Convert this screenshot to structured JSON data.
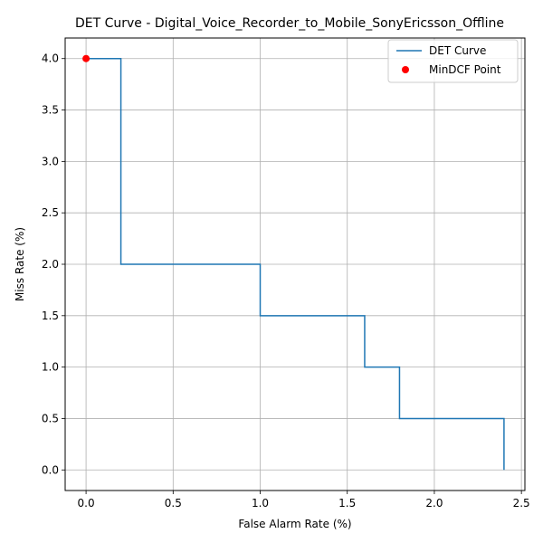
{
  "chart_data": {
    "type": "line",
    "title": "DET Curve - Digital_Voice_Recorder_to_Mobile_SonyEricsson_Offline",
    "xlabel": "False Alarm Rate (%)",
    "ylabel": "Miss Rate (%)",
    "xlim": [
      -0.12,
      2.52
    ],
    "ylim": [
      -0.2,
      4.2
    ],
    "grid": true,
    "legend_position": "top-right",
    "xticks": [
      0.0,
      0.5,
      1.0,
      1.5,
      2.0,
      2.5
    ],
    "yticks": [
      0.0,
      0.5,
      1.0,
      1.5,
      2.0,
      2.5,
      3.0,
      3.5,
      4.0
    ],
    "xtick_labels": [
      "0.0",
      "0.5",
      "1.0",
      "1.5",
      "2.0",
      "2.5"
    ],
    "ytick_labels": [
      "0.0",
      "0.5",
      "1.0",
      "1.5",
      "2.0",
      "2.5",
      "3.0",
      "3.5",
      "4.0"
    ],
    "series": [
      {
        "name": "DET Curve",
        "color": "#1f77b4",
        "x": [
          0.0,
          0.2,
          0.2,
          1.0,
          1.0,
          1.6,
          1.6,
          1.8,
          1.8,
          2.4,
          2.4
        ],
        "y": [
          4.0,
          4.0,
          2.0,
          2.0,
          1.5,
          1.5,
          1.0,
          1.0,
          0.5,
          0.5,
          0.0
        ]
      },
      {
        "name": "MinDCF Point",
        "color": "#ff0000",
        "marker": "circle",
        "x": [
          0.0
        ],
        "y": [
          4.0
        ]
      }
    ]
  }
}
